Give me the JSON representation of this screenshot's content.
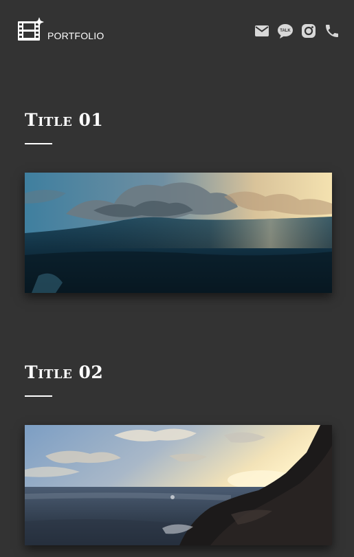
{
  "header": {
    "brand_label": "PORTFOLIO",
    "icons": [
      "film-sparkle-icon",
      "mail-icon",
      "kakaotalk-icon",
      "instagram-icon",
      "phone-icon"
    ],
    "talk_badge": "TALK"
  },
  "sections": [
    {
      "title": "Title 01",
      "image": "ocean-wave-sunset"
    },
    {
      "title": "Title 02",
      "image": "rocky-coast-sunset"
    }
  ],
  "colors": {
    "background": "#333333",
    "text": "#ffffff",
    "icon": "#d8d8d8"
  }
}
